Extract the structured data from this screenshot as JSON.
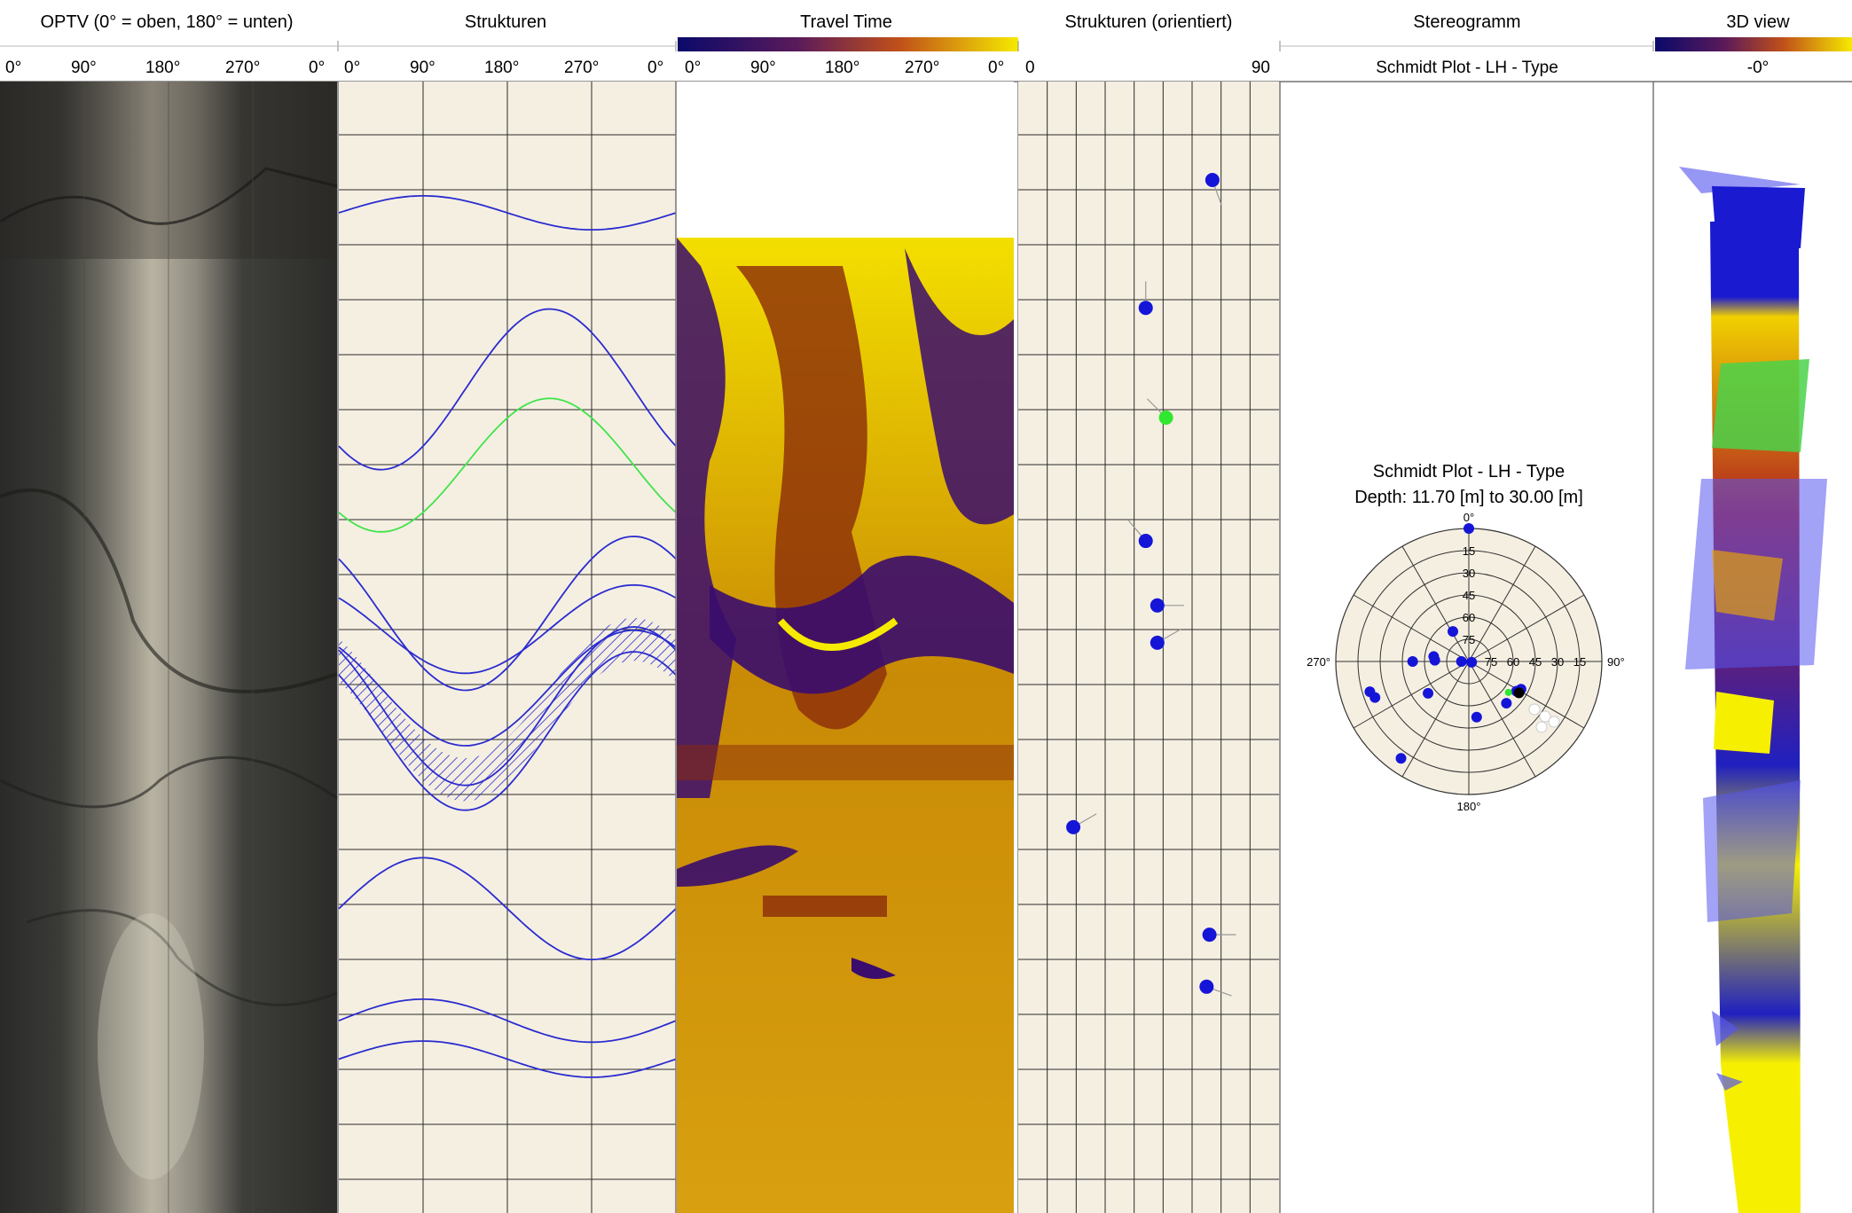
{
  "colors": {
    "panel_bg": "#f5efe2",
    "grid": "#2a2a2a",
    "structure_blue": "#2b2ccf",
    "structure_green": "#3fe44a",
    "point_blue": "#1515d8",
    "point_green": "#2fe82f",
    "point_black": "#000000",
    "travel_dark": "#2a0a6a",
    "travel_mid": "#8a2a08",
    "travel_bright": "#f6ea00"
  },
  "tracks": {
    "optv": {
      "title": "OPTV (0° = oben, 180° = unten)",
      "axis_ticks": [
        "0°",
        "90°",
        "180°",
        "270°",
        "0°"
      ]
    },
    "strukturen": {
      "title": "Strukturen",
      "axis_ticks": [
        "0°",
        "90°",
        "180°",
        "270°",
        "0°"
      ]
    },
    "travel_time": {
      "title": "Travel Time",
      "axis_ticks": [
        "0°",
        "90°",
        "180°",
        "270°",
        "0°"
      ]
    },
    "strukturen_orientiert": {
      "title": "Strukturen (orientiert)",
      "axis_left": "0",
      "axis_right": "90"
    },
    "stereogramm": {
      "title": "Stereogramm",
      "subtitle": "Schmidt Plot - LH - Type"
    },
    "view3d": {
      "title": "3D view",
      "axis_label": "-0°"
    }
  },
  "chart_data": [
    {
      "type": "line",
      "id": "strukturen_sinusoids",
      "x_range": [
        0,
        360
      ],
      "x_unit": "azimuth (°)",
      "series": [
        {
          "color": "blue",
          "center": 0.116,
          "amp": 0.015,
          "phase_deg": 90
        },
        {
          "color": "blue",
          "center": 0.272,
          "amp": 0.071,
          "phase_deg": 225
        },
        {
          "color": "green",
          "center": 0.339,
          "amp": 0.059,
          "phase_deg": 225
        },
        {
          "color": "blue",
          "center": 0.47,
          "amp": 0.068,
          "phase_deg": 315
        },
        {
          "color": "blue",
          "center": 0.484,
          "amp": 0.039,
          "phase_deg": 315
        },
        {
          "color": "blue",
          "center": 0.536,
          "amp": 0.051,
          "phase_deg": 315
        },
        {
          "color": "blue",
          "center": 0.552,
          "amp": 0.07,
          "phase_deg": 315
        },
        {
          "color": "blue",
          "center": 0.574,
          "amp": 0.07,
          "phase_deg": 315
        },
        {
          "color": "blue",
          "center": 0.731,
          "amp": 0.045,
          "phase_deg": 90
        },
        {
          "color": "blue",
          "center": 0.83,
          "amp": 0.019,
          "phase_deg": 90
        },
        {
          "color": "blue",
          "center": 0.864,
          "amp": 0.016,
          "phase_deg": 90
        }
      ],
      "hatched_band": {
        "upper_center": 0.536,
        "lower_center": 0.574,
        "amp": 0.062,
        "phase_deg": 315
      }
    },
    {
      "type": "scatter",
      "id": "tadpole_plot",
      "x_range": [
        0,
        90
      ],
      "points": [
        {
          "pos": 0.087,
          "dip": 67,
          "tail_azimuth_deg": 160,
          "color": "blue"
        },
        {
          "pos": 0.2,
          "dip": 44,
          "tail_azimuth_deg": 0,
          "color": "blue"
        },
        {
          "pos": 0.297,
          "dip": 51,
          "tail_azimuth_deg": 315,
          "color": "green"
        },
        {
          "pos": 0.406,
          "dip": 44,
          "tail_azimuth_deg": 320,
          "color": "blue"
        },
        {
          "pos": 0.463,
          "dip": 48,
          "tail_azimuth_deg": 90,
          "color": "blue"
        },
        {
          "pos": 0.496,
          "dip": 48,
          "tail_azimuth_deg": 60,
          "color": "blue"
        },
        {
          "pos": 0.659,
          "dip": 19,
          "tail_azimuth_deg": 60,
          "color": "blue"
        },
        {
          "pos": 0.754,
          "dip": 66,
          "tail_azimuth_deg": 90,
          "color": "blue"
        },
        {
          "pos": 0.8,
          "dip": 65,
          "tail_azimuth_deg": 110,
          "color": "blue"
        }
      ]
    },
    {
      "type": "scatter",
      "id": "schmidt_plot",
      "title": "Schmidt Plot - LH - Type",
      "subtitle": "Depth: 11.70 [m] to 30.00 [m]",
      "angular_labels": {
        "top": "0°",
        "right": "90°",
        "bottom": "180°",
        "left": "270°"
      },
      "radial_labels": [
        "15",
        "30",
        "45",
        "60",
        "75"
      ],
      "points": [
        {
          "az": 332,
          "dip": 67,
          "color": "blue"
        },
        {
          "az": 278,
          "dip": 66,
          "color": "blue"
        },
        {
          "az": 270,
          "dip": 85,
          "color": "blue"
        },
        {
          "az": 272,
          "dip": 67,
          "color": "blue"
        },
        {
          "az": 270,
          "dip": 52,
          "color": "blue"
        },
        {
          "az": 0,
          "dip": 0,
          "color": "blue"
        },
        {
          "az": 253,
          "dip": 20,
          "color": "blue"
        },
        {
          "az": 249,
          "dip": 22,
          "color": "blue"
        },
        {
          "az": 215,
          "dip": 10,
          "color": "blue"
        },
        {
          "az": 232,
          "dip": 55,
          "color": "blue"
        },
        {
          "az": 172,
          "dip": 52,
          "color": "blue"
        },
        {
          "az": 118,
          "dip": 50,
          "color": "blue"
        },
        {
          "az": 122,
          "dip": 52,
          "color": "blue"
        },
        {
          "az": 138,
          "dip": 52,
          "color": "blue"
        },
        {
          "az": 106,
          "dip": 88,
          "color": "blue"
        },
        {
          "az": 122,
          "dip": 50,
          "color": "black"
        },
        {
          "az": 128,
          "dip": 56,
          "color": "green"
        }
      ]
    }
  ]
}
